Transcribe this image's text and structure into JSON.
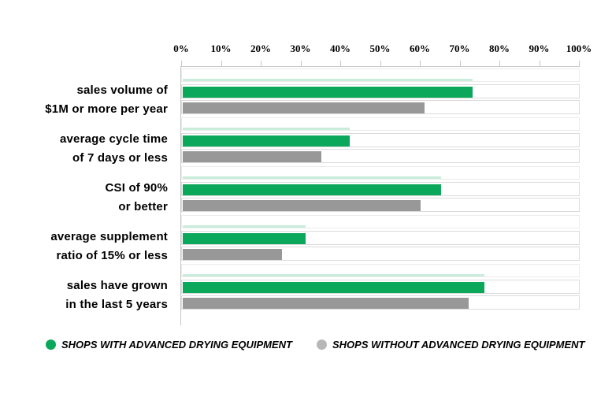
{
  "chart_data": {
    "type": "bar",
    "orientation": "horizontal",
    "categories": [
      {
        "lines": [
          "sales volume of",
          "$1M or more per year"
        ]
      },
      {
        "lines": [
          "average cycle time",
          "of 7 days or less"
        ]
      },
      {
        "lines": [
          "CSI of 90%",
          "or better"
        ]
      },
      {
        "lines": [
          "average supplement",
          "ratio of 15% or less"
        ]
      },
      {
        "lines": [
          "sales have grown",
          "in the last 5 years"
        ]
      }
    ],
    "series": [
      {
        "name": "SHOPS WITH ADVANCED DRYING EQUIPMENT",
        "values": [
          73,
          42,
          65,
          31,
          76
        ],
        "bar_color": "#0ba75a",
        "legend_dot_color": "#0ba75a"
      },
      {
        "name": "SHOPS WITHOUT ADVANCED DRYING EQUIPMENT",
        "values": [
          61,
          35,
          60,
          25,
          72
        ],
        "bar_color": "#989898",
        "legend_dot_color": "#b7b7b7"
      }
    ],
    "x_axis": {
      "ticks": [
        "0%",
        "10%",
        "20%",
        "30%",
        "40%",
        "50%",
        "60%",
        "70%",
        "80%",
        "90%",
        "100%"
      ],
      "min": 0,
      "max": 100
    },
    "grid": false,
    "legend_position": "bottom",
    "track_color": "#ffffff",
    "track_border_color": "#dbdbdb",
    "axis_line_color": "#c6c6c6",
    "text_color": "#000000"
  }
}
